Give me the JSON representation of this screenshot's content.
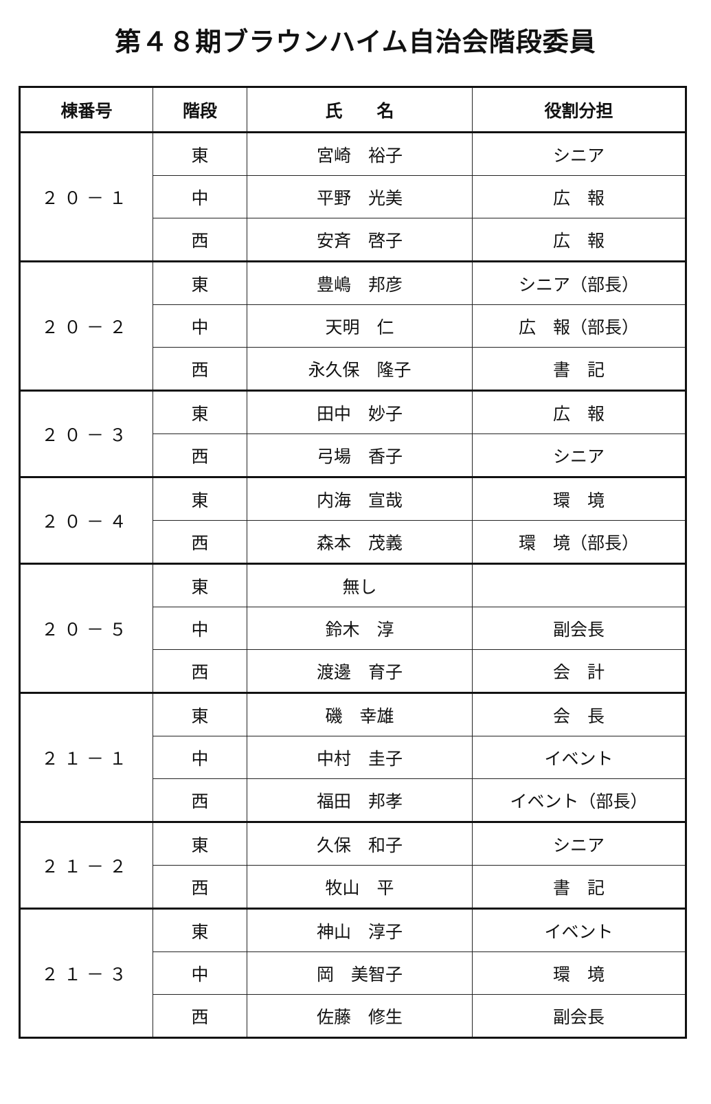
{
  "title": "第４８期ブラウンハイム自治会階段委員",
  "table": {
    "header": [
      "棟番号",
      "階段",
      "氏　　名",
      "役割分担"
    ],
    "groups": [
      {
        "building": "２０－１",
        "rows": [
          [
            "東",
            "宮崎　裕子",
            "シニア"
          ],
          [
            "中",
            "平野　光美",
            "広　報"
          ],
          [
            "西",
            "安斉　啓子",
            "広　報"
          ]
        ]
      },
      {
        "building": "２０－２",
        "rows": [
          [
            "東",
            "豊嶋　邦彦",
            "シニア（部長）"
          ],
          [
            "中",
            "天明　仁",
            "広　報（部長）"
          ],
          [
            "西",
            "永久保　隆子",
            "書　記"
          ]
        ]
      },
      {
        "building": "２０－３",
        "rows": [
          [
            "東",
            "田中　妙子",
            "広　報"
          ],
          [
            "西",
            "弓場　香子",
            "シニア"
          ]
        ]
      },
      {
        "building": "２０－４",
        "rows": [
          [
            "東",
            "内海　宣哉",
            "環　境"
          ],
          [
            "西",
            "森本　茂義",
            "環　境（部長）"
          ]
        ]
      },
      {
        "building": "２０－５",
        "rows": [
          [
            "東",
            "無し",
            null
          ],
          [
            "中",
            "鈴木　淳",
            "副会長"
          ],
          [
            "西",
            "渡邊　育子",
            "会　計"
          ]
        ]
      },
      {
        "building": "２１－１",
        "rows": [
          [
            "東",
            "磯　幸雄",
            "会　長"
          ],
          [
            "中",
            "中村　圭子",
            "イベント"
          ],
          [
            "西",
            "福田　邦孝",
            "イベント（部長）"
          ]
        ]
      },
      {
        "building": "２１－２",
        "rows": [
          [
            "東",
            "久保　和子",
            "シニア"
          ],
          [
            "西",
            "牧山　平",
            "書　記"
          ]
        ]
      },
      {
        "building": "２１－３",
        "rows": [
          [
            "東",
            "神山　淳子",
            "イベント"
          ],
          [
            "中",
            "岡　美智子",
            "環　境"
          ],
          [
            "西",
            "佐藤　修生",
            "副会長"
          ]
        ]
      }
    ]
  }
}
